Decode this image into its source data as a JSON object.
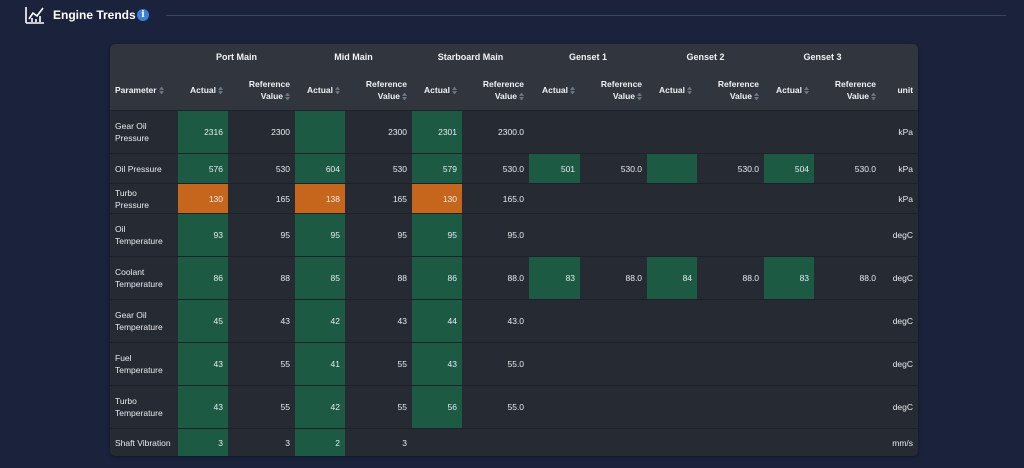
{
  "header": {
    "title": "Engine Trends"
  },
  "table": {
    "groups": [
      "Port Main",
      "Mid Main",
      "Starboard Main",
      "Genset 1",
      "Genset 2",
      "Genset 3"
    ],
    "columns": [
      "Parameter",
      "Actual",
      "Reference Value",
      "Actual",
      "Reference Value",
      "Actual",
      "Reference Value",
      "Actual",
      "Reference Value",
      "Actual",
      "Reference Value",
      "Actual",
      "Reference Value",
      "unit"
    ],
    "rows": [
      {
        "parameter": "Gear Oil Pressure",
        "cells": [
          "2316",
          "2300",
          null,
          "2300",
          "2301",
          "2300.0",
          null,
          null,
          null,
          null,
          null,
          null
        ],
        "highlight": [
          "#1c5a44",
          null,
          "#1c5a44",
          null,
          "#1c5a44",
          null,
          null,
          null,
          null,
          null,
          null,
          null
        ],
        "unit": "kPa"
      },
      {
        "parameter": "Oil Pressure",
        "cells": [
          "576",
          "530",
          "604",
          "530",
          "579",
          "530.0",
          "501",
          "530.0",
          null,
          "530.0",
          "504",
          "530.0"
        ],
        "highlight": [
          "#1c5a44",
          null,
          "#1c5a44",
          null,
          "#1c5a44",
          null,
          "#1c5a44",
          null,
          "#1c5a44",
          null,
          "#1c5a44",
          null
        ],
        "unit": "kPa"
      },
      {
        "parameter": "Turbo Pressure",
        "cells": [
          "130",
          "165",
          "138",
          "165",
          "130",
          "165.0",
          null,
          null,
          null,
          null,
          null,
          null
        ],
        "highlight": [
          "#c5661c",
          null,
          "#c5661c",
          null,
          "#c5661c",
          null,
          null,
          null,
          null,
          null,
          null,
          null
        ],
        "unit": "kPa"
      },
      {
        "parameter": "Oil Temperature",
        "cells": [
          "93",
          "95",
          "95",
          "95",
          "95",
          "95.0",
          null,
          null,
          null,
          null,
          null,
          null
        ],
        "highlight": [
          "#1c5a44",
          null,
          "#1c5a44",
          null,
          "#1c5a44",
          null,
          null,
          null,
          null,
          null,
          null,
          null
        ],
        "unit": "degC"
      },
      {
        "parameter": "Coolant Temperature",
        "cells": [
          "86",
          "88",
          "85",
          "88",
          "86",
          "88.0",
          "83",
          "88.0",
          "84",
          "88.0",
          "83",
          "88.0"
        ],
        "highlight": [
          "#1c5a44",
          null,
          "#1c5a44",
          null,
          "#1c5a44",
          null,
          "#1c5a44",
          null,
          "#1c5a44",
          null,
          "#1c5a44",
          null
        ],
        "unit": "degC"
      },
      {
        "parameter": "Gear Oil Temperature",
        "cells": [
          "45",
          "43",
          "42",
          "43",
          "44",
          "43.0",
          null,
          null,
          null,
          null,
          null,
          null
        ],
        "highlight": [
          "#1c5a44",
          null,
          "#1c5a44",
          null,
          "#1c5a44",
          null,
          null,
          null,
          null,
          null,
          null,
          null
        ],
        "unit": "degC"
      },
      {
        "parameter": "Fuel Temperature",
        "cells": [
          "43",
          "55",
          "41",
          "55",
          "43",
          "55.0",
          null,
          null,
          null,
          null,
          null,
          null
        ],
        "highlight": [
          "#1c5a44",
          null,
          "#1c5a44",
          null,
          "#1c5a44",
          null,
          null,
          null,
          null,
          null,
          null,
          null
        ],
        "unit": "degC"
      },
      {
        "parameter": "Turbo Temperature",
        "cells": [
          "43",
          "55",
          "42",
          "55",
          "56",
          "55.0",
          null,
          null,
          null,
          null,
          null,
          null
        ],
        "highlight": [
          "#1c5a44",
          null,
          "#1c5a44",
          null,
          "#1c5a44",
          null,
          null,
          null,
          null,
          null,
          null,
          null
        ],
        "unit": "degC"
      },
      {
        "parameter": "Shaft Vibration",
        "cells": [
          "3",
          "3",
          "2",
          "3",
          null,
          null,
          null,
          null,
          null,
          null,
          null,
          null
        ],
        "highlight": [
          "#1c5a44",
          null,
          "#1c5a44",
          null,
          null,
          null,
          null,
          null,
          null,
          null,
          null,
          null
        ],
        "unit": "mm/s"
      }
    ]
  }
}
